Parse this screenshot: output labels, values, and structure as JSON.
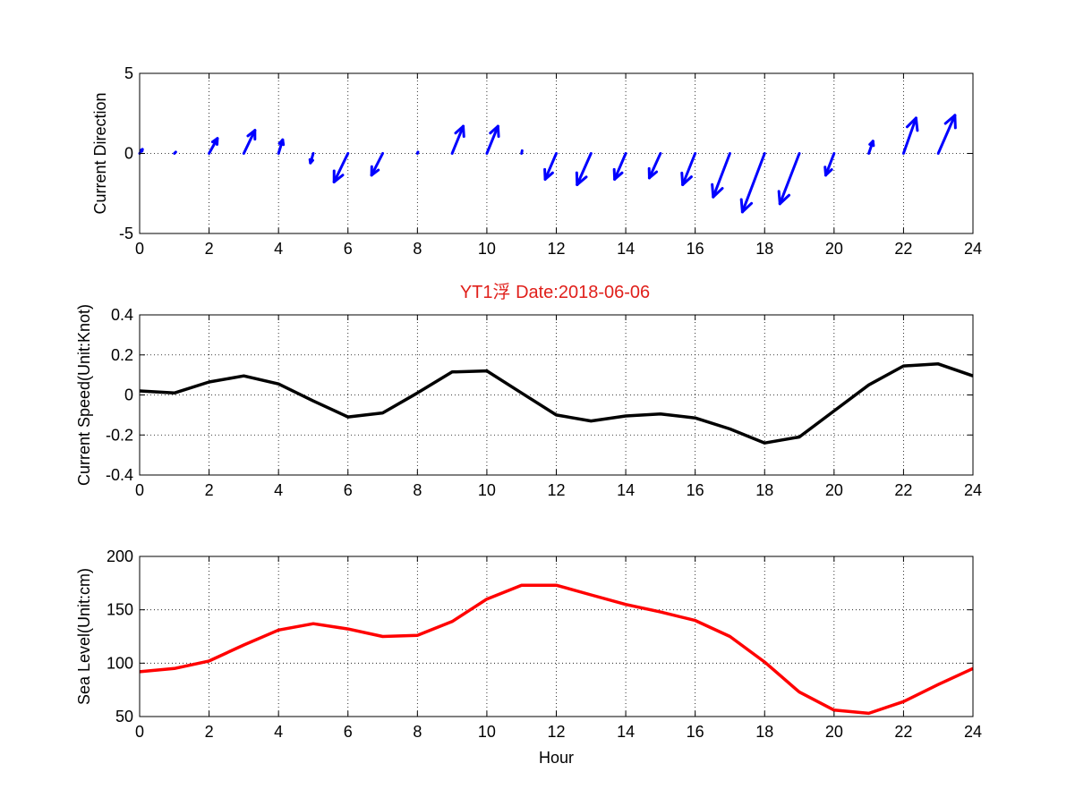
{
  "figure": {
    "title": "YT1浮    Date:2018-06-06",
    "title_color": "#e0201b"
  },
  "chart_data": [
    {
      "type": "quiver",
      "ylabel": "Current Direction",
      "xlabel": "",
      "xlim": [
        0,
        24
      ],
      "ylim": [
        -5,
        5
      ],
      "xticks": [
        "0",
        "2",
        "4",
        "6",
        "8",
        "10",
        "12",
        "14",
        "16",
        "18",
        "20",
        "22",
        "24"
      ],
      "yticks": [
        "-5",
        "0",
        "5"
      ],
      "grid": true,
      "color": "#0000ff",
      "series": [
        {
          "x": [
            0,
            1,
            2,
            3,
            4,
            5,
            6,
            7,
            8,
            9,
            10,
            11,
            12,
            13,
            14,
            15,
            16,
            17,
            18,
            19,
            20,
            21,
            22,
            23
          ],
          "u": [
            0.1,
            0.05,
            0.3,
            0.4,
            0.15,
            -0.1,
            -0.5,
            -0.4,
            0.02,
            0.4,
            0.4,
            0.02,
            -0.4,
            -0.5,
            -0.4,
            -0.4,
            -0.45,
            -0.6,
            -0.8,
            -0.7,
            -0.3,
            0.15,
            0.45,
            0.6
          ],
          "v": [
            0.3,
            0.1,
            1.1,
            1.7,
            1.0,
            -0.7,
            -2.1,
            -1.6,
            0.1,
            2.0,
            2.0,
            0.2,
            -1.9,
            -2.3,
            -1.9,
            -1.8,
            -2.3,
            -3.2,
            -4.3,
            -3.7,
            -1.6,
            0.9,
            2.6,
            2.8
          ]
        }
      ]
    },
    {
      "type": "line",
      "ylabel": "Current Speed(Unit:Knot)",
      "xlabel": "",
      "xlim": [
        0,
        24
      ],
      "ylim": [
        -0.4,
        0.4
      ],
      "xticks": [
        "0",
        "2",
        "4",
        "6",
        "8",
        "10",
        "12",
        "14",
        "16",
        "18",
        "20",
        "22",
        "24"
      ],
      "yticks": [
        "-0.4",
        "-0.2",
        "0",
        "0.2",
        "0.4"
      ],
      "grid": true,
      "series": [
        {
          "color": "#000000",
          "x": [
            0,
            1,
            2,
            3,
            4,
            5,
            6,
            7,
            8,
            9,
            10,
            11,
            12,
            13,
            14,
            15,
            16,
            17,
            18,
            19,
            20,
            21,
            22,
            23,
            24
          ],
          "values": [
            0.02,
            0.01,
            0.065,
            0.095,
            0.055,
            -0.03,
            -0.11,
            -0.09,
            0.01,
            0.115,
            0.12,
            0.01,
            -0.1,
            -0.13,
            -0.105,
            -0.095,
            -0.115,
            -0.17,
            -0.24,
            -0.21,
            -0.08,
            0.05,
            0.145,
            0.155,
            0.095
          ]
        }
      ]
    },
    {
      "type": "line",
      "ylabel": "Sea Level(Unit:cm)",
      "xlabel": "Hour",
      "xlim": [
        0,
        24
      ],
      "ylim": [
        50,
        200
      ],
      "xticks": [
        "0",
        "2",
        "4",
        "6",
        "8",
        "10",
        "12",
        "14",
        "16",
        "18",
        "20",
        "22",
        "24"
      ],
      "yticks": [
        "50",
        "100",
        "150",
        "200"
      ],
      "grid": true,
      "series": [
        {
          "color": "#ff0000",
          "x": [
            0,
            1,
            2,
            3,
            4,
            5,
            6,
            7,
            8,
            9,
            10,
            11,
            12,
            13,
            14,
            15,
            16,
            17,
            18,
            19,
            20,
            21,
            22,
            23,
            24
          ],
          "values": [
            92,
            95,
            102,
            117,
            131,
            137,
            132,
            125,
            126,
            139,
            160,
            173,
            173,
            164,
            155,
            148,
            140,
            125,
            101,
            73,
            56,
            53,
            64,
            80,
            95
          ]
        }
      ]
    }
  ]
}
